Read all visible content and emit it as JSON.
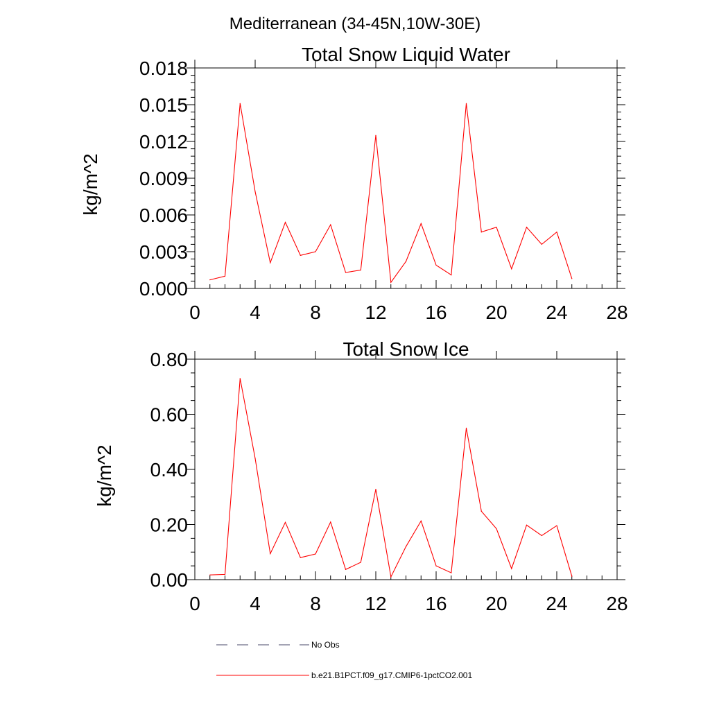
{
  "page_title": "Mediterranean (34-45N,10W-30E)",
  "colors": {
    "model_line": "#ff0000",
    "obs_line": "#4a4a6a",
    "axis": "#000000"
  },
  "legend": [
    {
      "label": "No Obs",
      "style": "dashed",
      "color": "#4a4a6a"
    },
    {
      "label": "b.e21.B1PCT.f09_g17.CMIP6-1pctCO2.001",
      "style": "solid",
      "color": "#ff0000"
    }
  ],
  "chart_data": [
    {
      "type": "line",
      "title": "Total Snow Liquid Water",
      "xlabel": "",
      "ylabel": "kg/m^2",
      "xlim": [
        0,
        28
      ],
      "ylim": [
        0,
        0.018
      ],
      "x_ticks": [
        "0",
        "4",
        "8",
        "12",
        "16",
        "20",
        "24",
        "28"
      ],
      "y_ticks": [
        "0.000",
        "0.003",
        "0.006",
        "0.009",
        "0.012",
        "0.015",
        "0.018"
      ],
      "grid": false,
      "series": [
        {
          "color": "#ff0000",
          "x": [
            1,
            2,
            3,
            4,
            5,
            6,
            7,
            8,
            9,
            10,
            11,
            12,
            13,
            14,
            15,
            16,
            17,
            18,
            19,
            20,
            21,
            22,
            23,
            24,
            25
          ],
          "values": [
            0.0007,
            0.001,
            0.0151,
            0.0079,
            0.0021,
            0.0054,
            0.0027,
            0.003,
            0.0052,
            0.0013,
            0.0015,
            0.0125,
            0.0005,
            0.0022,
            0.0053,
            0.0019,
            0.0011,
            0.0151,
            0.0046,
            0.005,
            0.0016,
            0.005,
            0.0036,
            0.0046,
            0.0008
          ]
        }
      ]
    },
    {
      "type": "line",
      "title": "Total Snow Ice",
      "xlabel": "",
      "ylabel": "kg/m^2",
      "xlim": [
        0,
        28
      ],
      "ylim": [
        0,
        0.8
      ],
      "x_ticks": [
        "0",
        "4",
        "8",
        "12",
        "16",
        "20",
        "24",
        "28"
      ],
      "y_ticks": [
        "0.00",
        "0.20",
        "0.40",
        "0.60",
        "0.80"
      ],
      "grid": false,
      "series": [
        {
          "color": "#ff0000",
          "x": [
            1,
            2,
            3,
            4,
            5,
            6,
            7,
            8,
            9,
            10,
            11,
            12,
            13,
            14,
            15,
            16,
            17,
            18,
            19,
            20,
            21,
            22,
            23,
            24,
            25
          ],
          "values": [
            0.017,
            0.019,
            0.73,
            0.44,
            0.094,
            0.208,
            0.08,
            0.093,
            0.209,
            0.037,
            0.063,
            0.328,
            0.01,
            0.12,
            0.213,
            0.05,
            0.025,
            0.55,
            0.248,
            0.185,
            0.04,
            0.198,
            0.16,
            0.196,
            0.012
          ]
        }
      ]
    }
  ]
}
